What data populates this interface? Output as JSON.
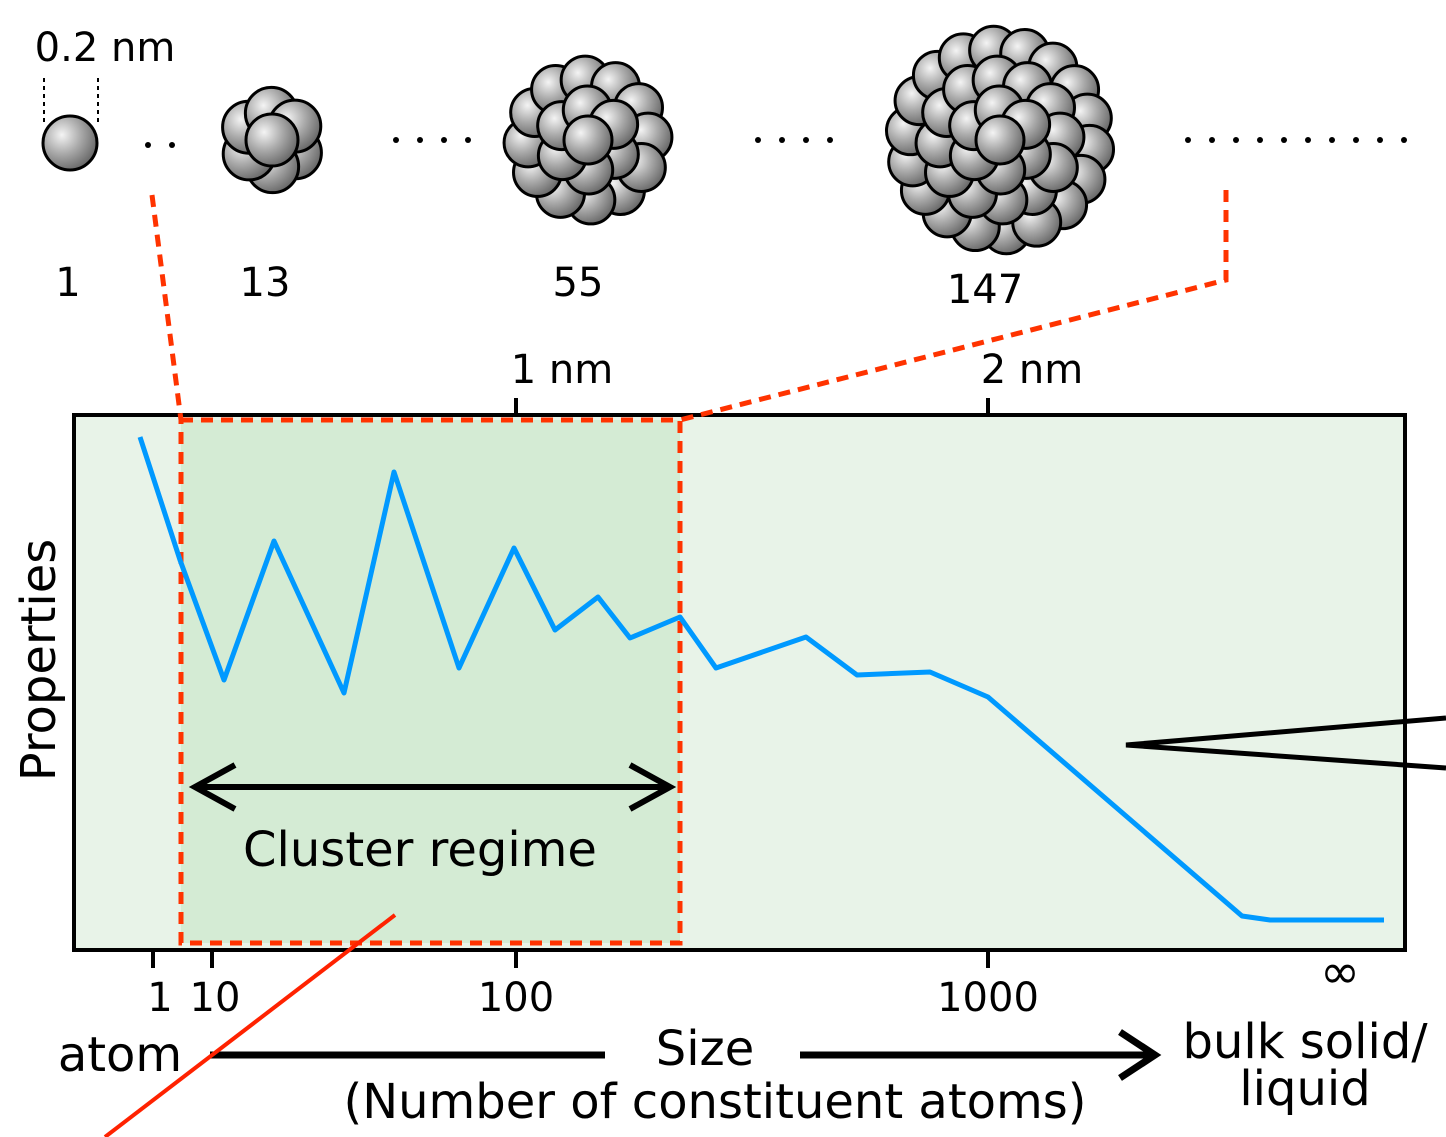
{
  "scale_bar": "0.2 nm",
  "clusters": [
    {
      "label": "1"
    },
    {
      "label": "13"
    },
    {
      "label": "55"
    },
    {
      "label": "147"
    }
  ],
  "top_axis": {
    "ticks": [
      "1 nm",
      "2 nm"
    ]
  },
  "bottom_axis": {
    "ticks": [
      "1",
      "10",
      "100",
      "1000",
      "∞"
    ]
  },
  "y_label": "Properties",
  "region_label": "Cluster regime",
  "x_label": {
    "start": "atom",
    "title": "Size",
    "subtitle": "(Number of constituent atoms)",
    "end": [
      "bulk solid/",
      "liquid"
    ]
  }
}
